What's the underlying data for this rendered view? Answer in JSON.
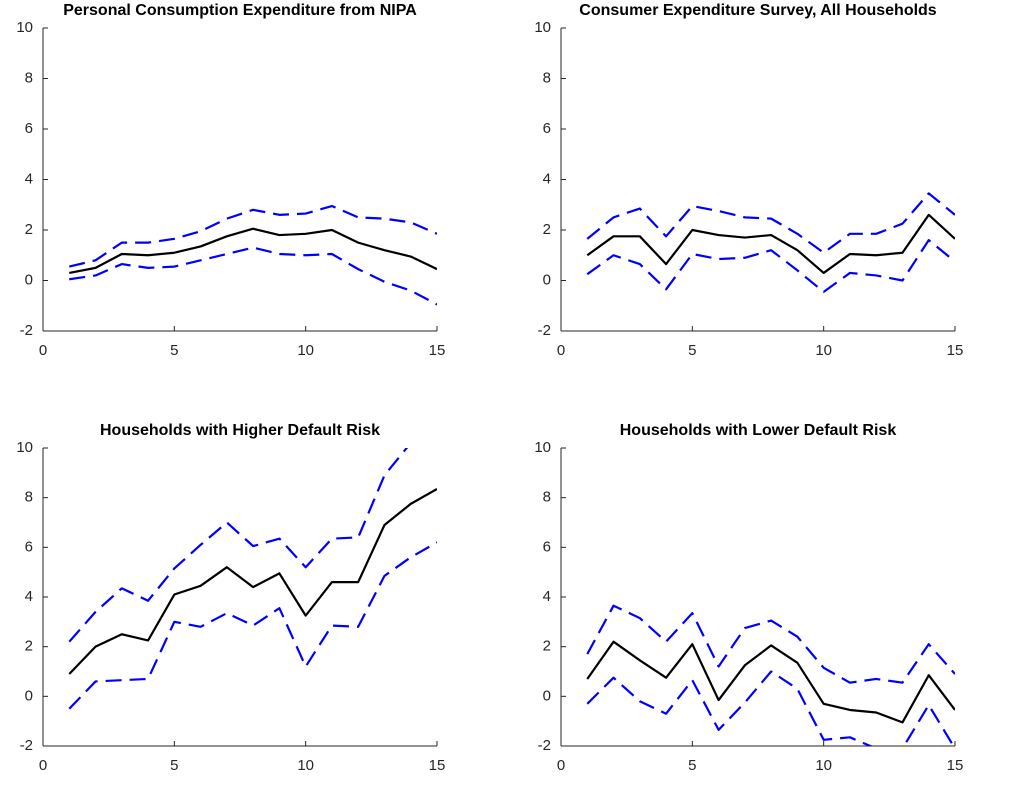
{
  "chart_data": [
    {
      "type": "line",
      "title": "Personal Consumption Expenditure from NIPA",
      "x": [
        1,
        2,
        3,
        4,
        5,
        6,
        7,
        8,
        9,
        10,
        11,
        12,
        13,
        14,
        15
      ],
      "series": [
        {
          "color": "#000000",
          "style": "solid",
          "values": [
            0.3,
            0.5,
            1.05,
            1.0,
            1.1,
            1.35,
            1.75,
            2.05,
            1.8,
            1.85,
            2.0,
            1.5,
            1.2,
            0.95,
            0.45
          ]
        },
        {
          "color": "#0000ff",
          "style": "dashed",
          "values": [
            0.55,
            0.8,
            1.5,
            1.5,
            1.65,
            1.95,
            2.45,
            2.8,
            2.6,
            2.65,
            2.95,
            2.5,
            2.45,
            2.3,
            1.85
          ]
        },
        {
          "color": "#0000ff",
          "style": "dashed",
          "values": [
            0.05,
            0.2,
            0.65,
            0.5,
            0.55,
            0.8,
            1.05,
            1.3,
            1.05,
            1.0,
            1.05,
            0.45,
            -0.05,
            -0.4,
            -0.95
          ]
        }
      ],
      "xlim": [
        0,
        15
      ],
      "xticks": [
        0,
        5,
        10,
        15
      ],
      "ylim": [
        -2,
        10
      ],
      "yticks": [
        -2,
        0,
        2,
        4,
        6,
        8,
        10
      ]
    },
    {
      "type": "line",
      "title": "Consumer Expenditure Survey, All Households",
      "x": [
        1,
        2,
        3,
        4,
        5,
        6,
        7,
        8,
        9,
        10,
        11,
        12,
        13,
        14,
        15
      ],
      "series": [
        {
          "color": "#000000",
          "style": "solid",
          "values": [
            1.0,
            1.75,
            1.75,
            0.65,
            2.0,
            1.8,
            1.7,
            1.8,
            1.2,
            0.3,
            1.05,
            1.0,
            1.1,
            2.6,
            1.65
          ]
        },
        {
          "color": "#0000ff",
          "style": "dashed",
          "values": [
            1.65,
            2.5,
            2.85,
            1.75,
            2.95,
            2.75,
            2.5,
            2.45,
            1.85,
            1.1,
            1.85,
            1.85,
            2.25,
            3.45,
            2.6
          ]
        },
        {
          "color": "#0000ff",
          "style": "dashed",
          "values": [
            0.25,
            1.0,
            0.65,
            -0.35,
            1.05,
            0.85,
            0.9,
            1.2,
            0.4,
            -0.45,
            0.3,
            0.2,
            0.0,
            1.6,
            0.75
          ]
        }
      ],
      "xlim": [
        0,
        15
      ],
      "xticks": [
        0,
        5,
        10,
        15
      ],
      "ylim": [
        -2,
        10
      ],
      "yticks": [
        -2,
        0,
        2,
        4,
        6,
        8,
        10
      ]
    },
    {
      "type": "line",
      "title": "Households with Higher Default Risk",
      "x": [
        1,
        2,
        3,
        4,
        5,
        6,
        7,
        8,
        9,
        10,
        11,
        12,
        13,
        14,
        15
      ],
      "series": [
        {
          "color": "#000000",
          "style": "solid",
          "values": [
            0.9,
            2.0,
            2.5,
            2.25,
            4.1,
            4.45,
            5.2,
            4.4,
            4.95,
            3.25,
            4.6,
            4.6,
            6.9,
            7.75,
            8.35
          ]
        },
        {
          "color": "#0000ff",
          "style": "dashed",
          "values": [
            2.2,
            3.4,
            4.35,
            3.85,
            5.15,
            6.1,
            7.0,
            6.05,
            6.35,
            5.2,
            6.35,
            6.4,
            8.9,
            10.2,
            11.2
          ]
        },
        {
          "color": "#0000ff",
          "style": "dashed",
          "values": [
            -0.5,
            0.6,
            0.65,
            0.7,
            3.0,
            2.8,
            3.35,
            2.85,
            3.55,
            1.2,
            2.85,
            2.8,
            4.85,
            5.6,
            6.2
          ]
        }
      ],
      "xlim": [
        0,
        15
      ],
      "xticks": [
        0,
        5,
        10,
        15
      ],
      "ylim": [
        -2,
        10
      ],
      "yticks": [
        -2,
        0,
        2,
        4,
        6,
        8,
        10
      ]
    },
    {
      "type": "line",
      "title": "Households with Lower Default Risk",
      "x": [
        1,
        2,
        3,
        4,
        5,
        6,
        7,
        8,
        9,
        10,
        11,
        12,
        13,
        14,
        15
      ],
      "series": [
        {
          "color": "#000000",
          "style": "solid",
          "values": [
            0.7,
            2.2,
            1.45,
            0.75,
            2.1,
            -0.15,
            1.25,
            2.05,
            1.35,
            -0.3,
            -0.55,
            -0.65,
            -1.05,
            0.85,
            -0.55
          ]
        },
        {
          "color": "#0000ff",
          "style": "dashed",
          "values": [
            1.7,
            3.65,
            3.15,
            2.2,
            3.35,
            1.2,
            2.75,
            3.05,
            2.4,
            1.15,
            0.55,
            0.7,
            0.55,
            2.1,
            0.9
          ]
        },
        {
          "color": "#0000ff",
          "style": "dashed",
          "values": [
            -0.3,
            0.75,
            -0.2,
            -0.7,
            0.65,
            -1.35,
            -0.25,
            1.0,
            0.3,
            -1.75,
            -1.65,
            -2.1,
            -2.1,
            -0.35,
            -2.1
          ]
        }
      ],
      "xlim": [
        0,
        15
      ],
      "xticks": [
        0,
        5,
        10,
        15
      ],
      "ylim": [
        -2,
        10
      ],
      "yticks": [
        -2,
        0,
        2,
        4,
        6,
        8,
        10
      ]
    }
  ]
}
